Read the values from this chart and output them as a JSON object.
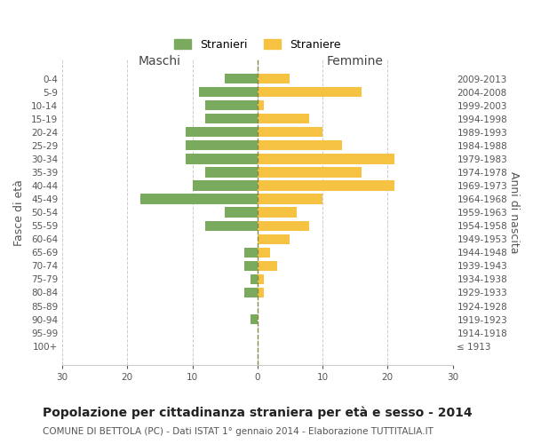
{
  "age_groups": [
    "0-4",
    "5-9",
    "10-14",
    "15-19",
    "20-24",
    "25-29",
    "30-34",
    "35-39",
    "40-44",
    "45-49",
    "50-54",
    "55-59",
    "60-64",
    "65-69",
    "70-74",
    "75-79",
    "80-84",
    "85-89",
    "90-94",
    "95-99",
    "100+"
  ],
  "birth_years": [
    "2009-2013",
    "2004-2008",
    "1999-2003",
    "1994-1998",
    "1989-1993",
    "1984-1988",
    "1979-1983",
    "1974-1978",
    "1969-1973",
    "1964-1968",
    "1959-1963",
    "1954-1958",
    "1949-1953",
    "1944-1948",
    "1939-1943",
    "1934-1938",
    "1929-1933",
    "1924-1928",
    "1919-1923",
    "1914-1918",
    "≤ 1913"
  ],
  "maschi": [
    5,
    9,
    8,
    8,
    11,
    11,
    11,
    8,
    10,
    18,
    5,
    8,
    0,
    2,
    2,
    1,
    2,
    0,
    1,
    0,
    0
  ],
  "femmine": [
    5,
    16,
    1,
    8,
    10,
    13,
    21,
    16,
    21,
    10,
    6,
    8,
    5,
    2,
    3,
    1,
    1,
    0,
    0,
    0,
    0
  ],
  "maschi_color": "#7aaa5e",
  "femmine_color": "#f5c242",
  "grid_color": "#cccccc",
  "center_line_color": "#888844",
  "xlim": 30,
  "title": "Popolazione per cittadinanza straniera per età e sesso - 2014",
  "subtitle": "COMUNE DI BETTOLA (PC) - Dati ISTAT 1° gennaio 2014 - Elaborazione TUTTITALIA.IT",
  "ylabel_left": "Fasce di età",
  "ylabel_right": "Anni di nascita",
  "xlabel_maschi": "Maschi",
  "xlabel_femmine": "Femmine",
  "legend_maschi": "Stranieri",
  "legend_femmine": "Straniere",
  "tick_fontsize": 7.5,
  "title_fontsize": 10,
  "subtitle_fontsize": 7.5
}
